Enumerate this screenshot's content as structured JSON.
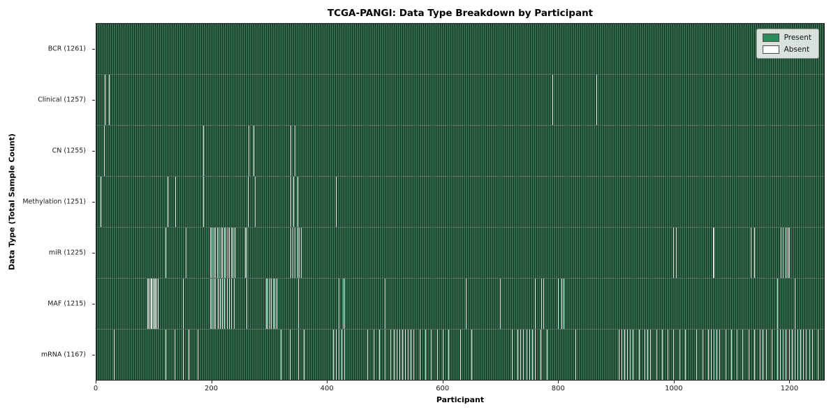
{
  "chart_data": {
    "type": "heatmap",
    "title": "TCGA-PANGI: Data Type Breakdown by Participant",
    "xlabel": "Participant",
    "ylabel": "Data Type (Total Sample Count)",
    "x_range": [
      0,
      1261
    ],
    "x_ticks": [
      0,
      200,
      400,
      600,
      800,
      1000,
      1200
    ],
    "total_participants": 1261,
    "legend": {
      "present_label": "Present",
      "absent_label": "Absent",
      "position": "upper right"
    },
    "colors": {
      "present": "#2e8b57",
      "absent": "#ffffff",
      "plot_fill": "#336b4f",
      "cell_edge": "#14301f",
      "absent_line": "#e6e6e6"
    },
    "rows": [
      {
        "data_type": "BCR",
        "label": "BCR (1261)",
        "present_count": 1261,
        "absent_count": 0,
        "absent_positions": []
      },
      {
        "data_type": "Clinical",
        "label": "Clinical (1257)",
        "present_count": 1257,
        "absent_count": 4,
        "absent_positions": [
          14,
          22,
          790,
          866
        ]
      },
      {
        "data_type": "CN",
        "label": "CN (1255)",
        "present_count": 1255,
        "absent_count": 6,
        "absent_positions": [
          13,
          185,
          264,
          272,
          336,
          344
        ]
      },
      {
        "data_type": "Methylation",
        "label": "Methylation (1251)",
        "present_count": 1251,
        "absent_count": 10,
        "absent_positions": [
          7,
          124,
          137,
          185,
          263,
          275,
          336,
          341,
          348,
          415
        ]
      },
      {
        "data_type": "miR",
        "label": "miR (1225)",
        "present_count": 1225,
        "absent_count": 36,
        "absent_positions": [
          120,
          155,
          197,
          200,
          203,
          206,
          209,
          212,
          215,
          218,
          221,
          224,
          227,
          230,
          233,
          236,
          240,
          258,
          260,
          336,
          340,
          344,
          348,
          351,
          354,
          1000,
          1004,
          1068,
          1070,
          1134,
          1140,
          1186,
          1190,
          1194,
          1198,
          1200
        ]
      },
      {
        "data_type": "MAF",
        "label": "MAF (1215)",
        "present_count": 1215,
        "absent_count": 46,
        "absent_positions": [
          88,
          90,
          92,
          94,
          96,
          98,
          100,
          102,
          104,
          106,
          150,
          197,
          200,
          203,
          206,
          210,
          214,
          218,
          222,
          226,
          230,
          234,
          238,
          260,
          294,
          297,
          300,
          303,
          306,
          309,
          312,
          350,
          420,
          427,
          430,
          500,
          640,
          700,
          760,
          771,
          775,
          800,
          806,
          810,
          1180,
          1210
        ]
      },
      {
        "data_type": "mRNA",
        "label": "mRNA (1167)",
        "present_count": 1167,
        "absent_count": 94,
        "absent_positions": [
          30,
          120,
          135,
          150,
          160,
          175,
          320,
          335,
          350,
          360,
          410,
          415,
          420,
          425,
          430,
          470,
          480,
          490,
          500,
          510,
          515,
          520,
          525,
          530,
          535,
          540,
          545,
          550,
          560,
          570,
          580,
          590,
          600,
          610,
          630,
          650,
          720,
          730,
          735,
          740,
          745,
          750,
          755,
          760,
          770,
          780,
          830,
          905,
          910,
          915,
          920,
          925,
          930,
          940,
          950,
          955,
          960,
          970,
          980,
          990,
          1000,
          1010,
          1020,
          1040,
          1050,
          1060,
          1065,
          1070,
          1075,
          1080,
          1090,
          1100,
          1110,
          1120,
          1130,
          1140,
          1150,
          1155,
          1160,
          1170,
          1180,
          1185,
          1190,
          1195,
          1200,
          1205,
          1210,
          1215,
          1220,
          1225,
          1230,
          1235,
          1240,
          1250
        ]
      }
    ]
  }
}
